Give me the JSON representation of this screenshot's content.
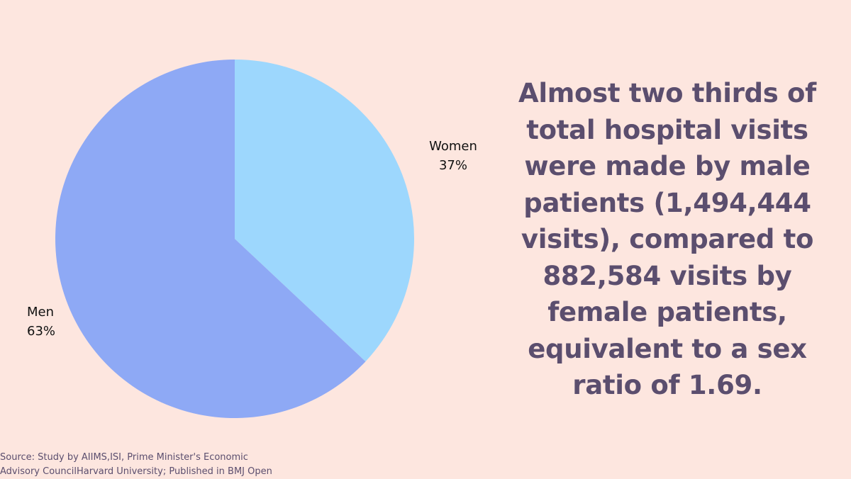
{
  "chart_data": {
    "type": "pie",
    "slices": [
      {
        "label": "Women",
        "value": 37,
        "value_label": "37%",
        "color": "#9dd7fd"
      },
      {
        "label": "Men",
        "value": 63,
        "value_label": "63%",
        "color": "#8ea9f5"
      }
    ],
    "start_angle": "12 o'clock",
    "direction": "clockwise"
  },
  "headline": "Almost two thirds of total hospital visits were made by male patients  (1,494,444 visits), compared to 882,584 visits by female patients, equivalent to a sex ratio of 1.69.",
  "source": {
    "line1": "Source: Study by AIIMS,ISI, Prime Minister's Economic",
    "line2": "Advisory CouncilHarvard University; Published in BMJ Open"
  },
  "colors": {
    "background": "#fde6df",
    "headline_text": "#5b4e6e"
  }
}
